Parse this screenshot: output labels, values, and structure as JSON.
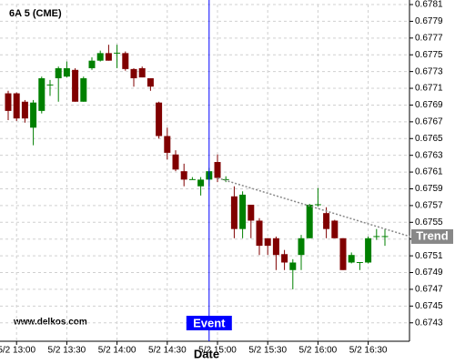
{
  "chart_data": {
    "type": "candlestick",
    "title": "6A 5 (CME)",
    "watermark": "www.delkos.com",
    "x_label": "Date",
    "categories": [
      null,
      "5/2 13:00",
      null,
      null,
      null,
      null,
      null,
      "5/2 13:30",
      null,
      null,
      null,
      null,
      null,
      "5/2 14:00",
      null,
      null,
      null,
      null,
      null,
      "5/2 14:30",
      null,
      null,
      null,
      null,
      null,
      "5/2 15:00",
      null,
      null,
      null,
      null,
      null,
      "5/2 15:30",
      null,
      null,
      null,
      null,
      null,
      "5/2 16:00",
      null,
      null,
      null,
      null,
      null,
      "5/2 16:30",
      null,
      null
    ],
    "open": [
      0.67704,
      0.67704,
      0.67694,
      0.67663,
      0.67683,
      0.67714,
      0.67722,
      0.67724,
      0.67732,
      0.67694,
      0.67734,
      0.67743,
      0.67752,
      0.67752,
      0.67752,
      0.67733,
      0.67734,
      0.67722,
      0.67693,
      0.67653,
      0.67631,
      0.67611,
      0.67601,
      0.67593,
      0.67601,
      0.67622,
      0.67601,
      0.67581,
      0.67542,
      0.67571,
      0.67552,
      0.67531,
      0.67531,
      0.67512,
      0.67493,
      0.67511,
      0.67531,
      0.67571,
      0.67561,
      0.67552,
      0.67531,
      0.67502,
      0.67502,
      0.67502,
      0.67533,
      0.67533
    ],
    "high": [
      0.67707,
      0.67705,
      0.67696,
      0.67696,
      0.67724,
      0.6772,
      0.67736,
      0.67742,
      0.67734,
      0.67724,
      0.67747,
      0.67755,
      0.67762,
      0.67762,
      0.67754,
      0.67734,
      0.67736,
      0.67722,
      0.67694,
      0.67663,
      0.67636,
      0.6762,
      0.67604,
      0.67604,
      0.67615,
      0.67631,
      0.67605,
      0.67593,
      0.67587,
      0.67571,
      0.67555,
      0.67531,
      0.67533,
      0.67517,
      0.67506,
      0.67535,
      0.67572,
      0.67591,
      0.67568,
      0.67553,
      0.67531,
      0.67514,
      0.67502,
      0.67533,
      0.67542,
      0.67542
    ],
    "low": [
      0.67672,
      0.67671,
      0.67669,
      0.67642,
      0.6768,
      0.67701,
      0.67694,
      0.67723,
      0.67694,
      0.67694,
      0.67732,
      0.67742,
      0.67743,
      0.67734,
      0.67731,
      0.67712,
      0.67723,
      0.67707,
      0.6765,
      0.67625,
      0.67611,
      0.67593,
      0.67601,
      0.67582,
      0.67593,
      0.67598,
      0.67598,
      0.67531,
      0.67531,
      0.67531,
      0.67511,
      0.67511,
      0.67493,
      0.67493,
      0.6747,
      0.67493,
      0.67531,
      0.67569,
      0.67531,
      0.67531,
      0.67493,
      0.67501,
      0.67493,
      0.67501,
      0.67529,
      0.67522
    ],
    "close": [
      0.67683,
      0.67674,
      0.67674,
      0.67693,
      0.67722,
      0.67714,
      0.67734,
      0.67734,
      0.67694,
      0.67722,
      0.67743,
      0.67752,
      0.67743,
      0.67752,
      0.67733,
      0.67722,
      0.67723,
      0.67712,
      0.67653,
      0.67633,
      0.67613,
      0.67601,
      0.67601,
      0.67601,
      0.67611,
      0.67603,
      0.67601,
      0.67542,
      0.67583,
      0.67552,
      0.67522,
      0.67522,
      0.67511,
      0.67502,
      0.67502,
      0.67531,
      0.67571,
      0.67571,
      0.67542,
      0.67531,
      0.67493,
      0.67511,
      0.67502,
      0.67531,
      0.67533,
      0.67533
    ],
    "up_color": "#008000",
    "down_color": "#800000",
    "ylim": [
      0.67408,
      0.6781
    ],
    "yticks": [
      0.6743,
      0.6745,
      0.6747,
      0.6749,
      0.6751,
      0.6753,
      0.6755,
      0.6757,
      0.6759,
      0.6761,
      0.6763,
      0.6765,
      0.6767,
      0.6769,
      0.6771,
      0.6773,
      0.6775,
      0.6777,
      0.6779,
      0.6781
    ],
    "grid": true,
    "event": {
      "label": "Event",
      "at": 24,
      "color": "#0000ff"
    },
    "trend": {
      "label": "Trend",
      "from": [
        25,
        0.67603
      ],
      "to": [
        48,
        0.67533
      ],
      "color": "#888888"
    }
  }
}
